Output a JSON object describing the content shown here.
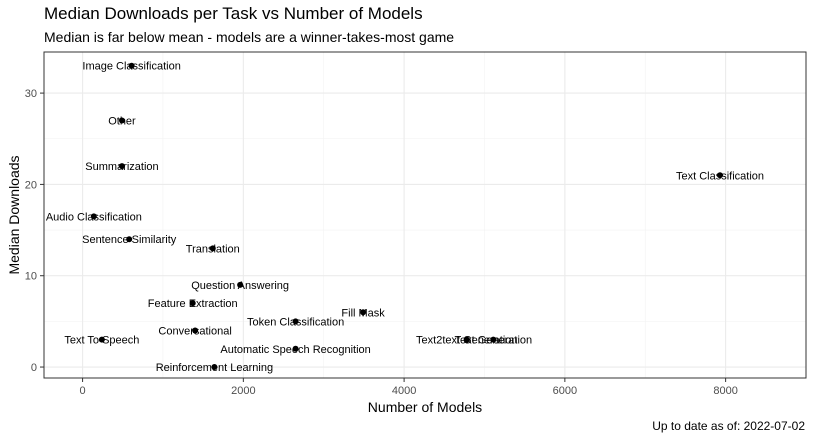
{
  "chart_data": {
    "type": "scatter",
    "title": "Median Downloads per Task vs Number of Models",
    "subtitle": "Median is far below mean - models are a winner-takes-most game",
    "xlabel": "Number of Models",
    "ylabel": "Median Downloads",
    "caption": "Up to date as of: 2022-07-02",
    "xlim": [
      -480,
      9000
    ],
    "ylim": [
      -1.2,
      34.5
    ],
    "x_ticks": [
      0,
      2000,
      4000,
      6000,
      8000
    ],
    "x_tick_labels": [
      "0",
      "2000",
      "4000",
      "6000",
      "8000"
    ],
    "y_ticks": [
      0,
      10,
      20,
      30
    ],
    "y_tick_labels": [
      "0",
      "10",
      "20",
      "30"
    ],
    "grid": true,
    "point_color": "#000000",
    "points": [
      {
        "label": "Image Classification",
        "x": 610,
        "y": 33
      },
      {
        "label": "Other",
        "x": 490,
        "y": 27
      },
      {
        "label": "Summarization",
        "x": 490,
        "y": 22
      },
      {
        "label": "Text Classification",
        "x": 7930,
        "y": 21
      },
      {
        "label": "Audio Classification",
        "x": 140,
        "y": 16.5
      },
      {
        "label": "Sentence Similarity",
        "x": 580,
        "y": 14
      },
      {
        "label": "Translation",
        "x": 1620,
        "y": 13
      },
      {
        "label": "Question Answering",
        "x": 1960,
        "y": 9
      },
      {
        "label": "Feature Extraction",
        "x": 1370,
        "y": 7
      },
      {
        "label": "Fill Mask",
        "x": 3490,
        "y": 6
      },
      {
        "label": "Token Classification",
        "x": 2650,
        "y": 5
      },
      {
        "label": "Conversational",
        "x": 1400,
        "y": 4
      },
      {
        "label": "Text To Speech",
        "x": 240,
        "y": 3
      },
      {
        "label": "Text2text Generation",
        "x": 4780,
        "y": 3
      },
      {
        "label": "Text Generation",
        "x": 5110,
        "y": 3
      },
      {
        "label": "Automatic Speech Recognition",
        "x": 2650,
        "y": 2
      },
      {
        "label": "Reinforcement Learning",
        "x": 1640,
        "y": 0
      }
    ]
  }
}
